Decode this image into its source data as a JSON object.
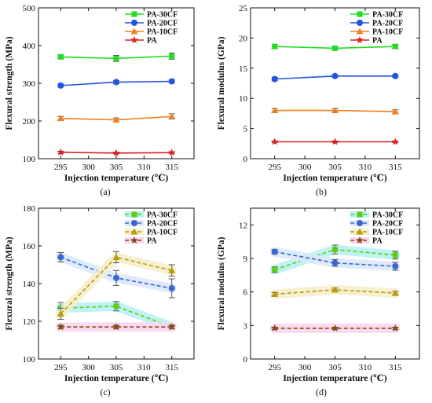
{
  "chart_data": [
    {
      "type": "line",
      "caption": "(a)",
      "xlabel": "Injection temperature (℃)",
      "ylabel": "Flexural strength (MPa)",
      "x": [
        295,
        305,
        315
      ],
      "xticks": [
        295,
        300,
        305,
        310,
        315
      ],
      "xlim": [
        291,
        319
      ],
      "ylim": [
        100,
        500
      ],
      "yticks": [
        100,
        200,
        300,
        400,
        500
      ],
      "legend_position": "top-right",
      "styled": false,
      "series": [
        {
          "name": "PA-30CF",
          "values": [
            370,
            366,
            372
          ],
          "errors": [
            5,
            8,
            8
          ],
          "color": "#22dd22",
          "marker": "square"
        },
        {
          "name": "PA-20CF",
          "values": [
            294,
            303,
            305
          ],
          "errors": [
            4,
            4,
            4
          ],
          "color": "#2255dd",
          "marker": "circle"
        },
        {
          "name": "PA-10CF",
          "values": [
            207,
            203,
            212
          ],
          "errors": [
            5,
            5,
            7
          ],
          "color": "#f07f22",
          "marker": "triangle"
        },
        {
          "name": "PA",
          "values": [
            117,
            115,
            116
          ],
          "errors": [
            3,
            2,
            2
          ],
          "color": "#dd2222",
          "marker": "star"
        }
      ]
    },
    {
      "type": "line",
      "caption": "(b)",
      "xlabel": "Injection temperature (℃)",
      "ylabel": "Flexural modulus (GPa)",
      "x": [
        295,
        305,
        315
      ],
      "xticks": [
        295,
        300,
        305,
        310,
        315
      ],
      "xlim": [
        291,
        319
      ],
      "ylim": [
        0,
        25
      ],
      "yticks": [
        0,
        5,
        10,
        15,
        20,
        25
      ],
      "legend_position": "top-right",
      "styled": false,
      "series": [
        {
          "name": "PA-30CF",
          "values": [
            18.6,
            18.3,
            18.6
          ],
          "errors": [
            0.3,
            0.3,
            0.3
          ],
          "color": "#22dd22",
          "marker": "square"
        },
        {
          "name": "PA-20CF",
          "values": [
            13.2,
            13.7,
            13.7
          ],
          "errors": [
            0.3,
            0.2,
            0.2
          ],
          "color": "#2255dd",
          "marker": "circle"
        },
        {
          "name": "PA-10CF",
          "values": [
            8.0,
            8.0,
            7.8
          ],
          "errors": [
            0.3,
            0.3,
            0.3
          ],
          "color": "#f07f22",
          "marker": "triangle"
        },
        {
          "name": "PA",
          "values": [
            2.8,
            2.8,
            2.8
          ],
          "errors": [
            0.1,
            0.1,
            0.1
          ],
          "color": "#dd2222",
          "marker": "star"
        }
      ]
    },
    {
      "type": "line",
      "caption": "(c)",
      "xlabel": "Injection temperature (℃)",
      "ylabel": "Flexural strength (MPa)",
      "x": [
        295,
        305,
        315
      ],
      "xticks": [
        295,
        300,
        305,
        310,
        315
      ],
      "xlim": [
        291,
        319
      ],
      "ylim": [
        100,
        180
      ],
      "yticks": [
        100,
        120,
        140,
        160,
        180
      ],
      "legend_position": "top-right",
      "styled": true,
      "series": [
        {
          "name": "PA-30CF",
          "values": [
            127,
            128,
            117
          ],
          "errors": [
            3,
            2.5,
            1
          ],
          "color": "#5ccc18",
          "marker": "square",
          "band": "#b8f2f2"
        },
        {
          "name": "PA-20CF",
          "values": [
            154,
            143,
            137.5
          ],
          "errors": [
            2.5,
            4,
            5
          ],
          "color": "#3a66d6",
          "marker": "circle",
          "band": "#dce8fb"
        },
        {
          "name": "PA-10CF",
          "values": [
            124,
            154,
            147
          ],
          "errors": [
            3,
            3,
            3
          ],
          "color": "#b89a10",
          "marker": "triangle",
          "band": "#f6eecb"
        },
        {
          "name": "PA",
          "values": [
            117,
            117,
            117
          ],
          "errors": [
            1,
            1,
            1
          ],
          "color": "#8a4a14",
          "marker": "star",
          "band": "#f9d6ee"
        }
      ]
    },
    {
      "type": "line",
      "caption": "(d)",
      "xlabel": "Injection temperature (℃)",
      "ylabel": "Flexural modulus (GPa)",
      "x": [
        295,
        305,
        315
      ],
      "xticks": [
        295,
        300,
        305,
        310,
        315
      ],
      "xlim": [
        291,
        319
      ],
      "ylim": [
        0,
        13.5
      ],
      "yticks": [
        0,
        3,
        6,
        9,
        12
      ],
      "legend_position": "top-right",
      "styled": true,
      "series": [
        {
          "name": "PA-30CF",
          "values": [
            8.0,
            9.8,
            9.3
          ],
          "errors": [
            0.25,
            0.4,
            0.35
          ],
          "color": "#5ccc18",
          "marker": "square",
          "band": "#b8f2f2"
        },
        {
          "name": "PA-20CF",
          "values": [
            9.6,
            8.6,
            8.3
          ],
          "errors": [
            0.2,
            0.3,
            0.35
          ],
          "color": "#3a66d6",
          "marker": "circle",
          "band": "#dce8fb"
        },
        {
          "name": "PA-10CF",
          "values": [
            5.8,
            6.2,
            5.9
          ],
          "errors": [
            0.15,
            0.15,
            0.15
          ],
          "color": "#b89a10",
          "marker": "triangle",
          "band": "#f6eecb"
        },
        {
          "name": "PA",
          "values": [
            2.75,
            2.75,
            2.75
          ],
          "errors": [
            0.1,
            0.1,
            0.1
          ],
          "color": "#8a4a14",
          "marker": "star",
          "band": "#f9d6ee"
        }
      ]
    }
  ]
}
